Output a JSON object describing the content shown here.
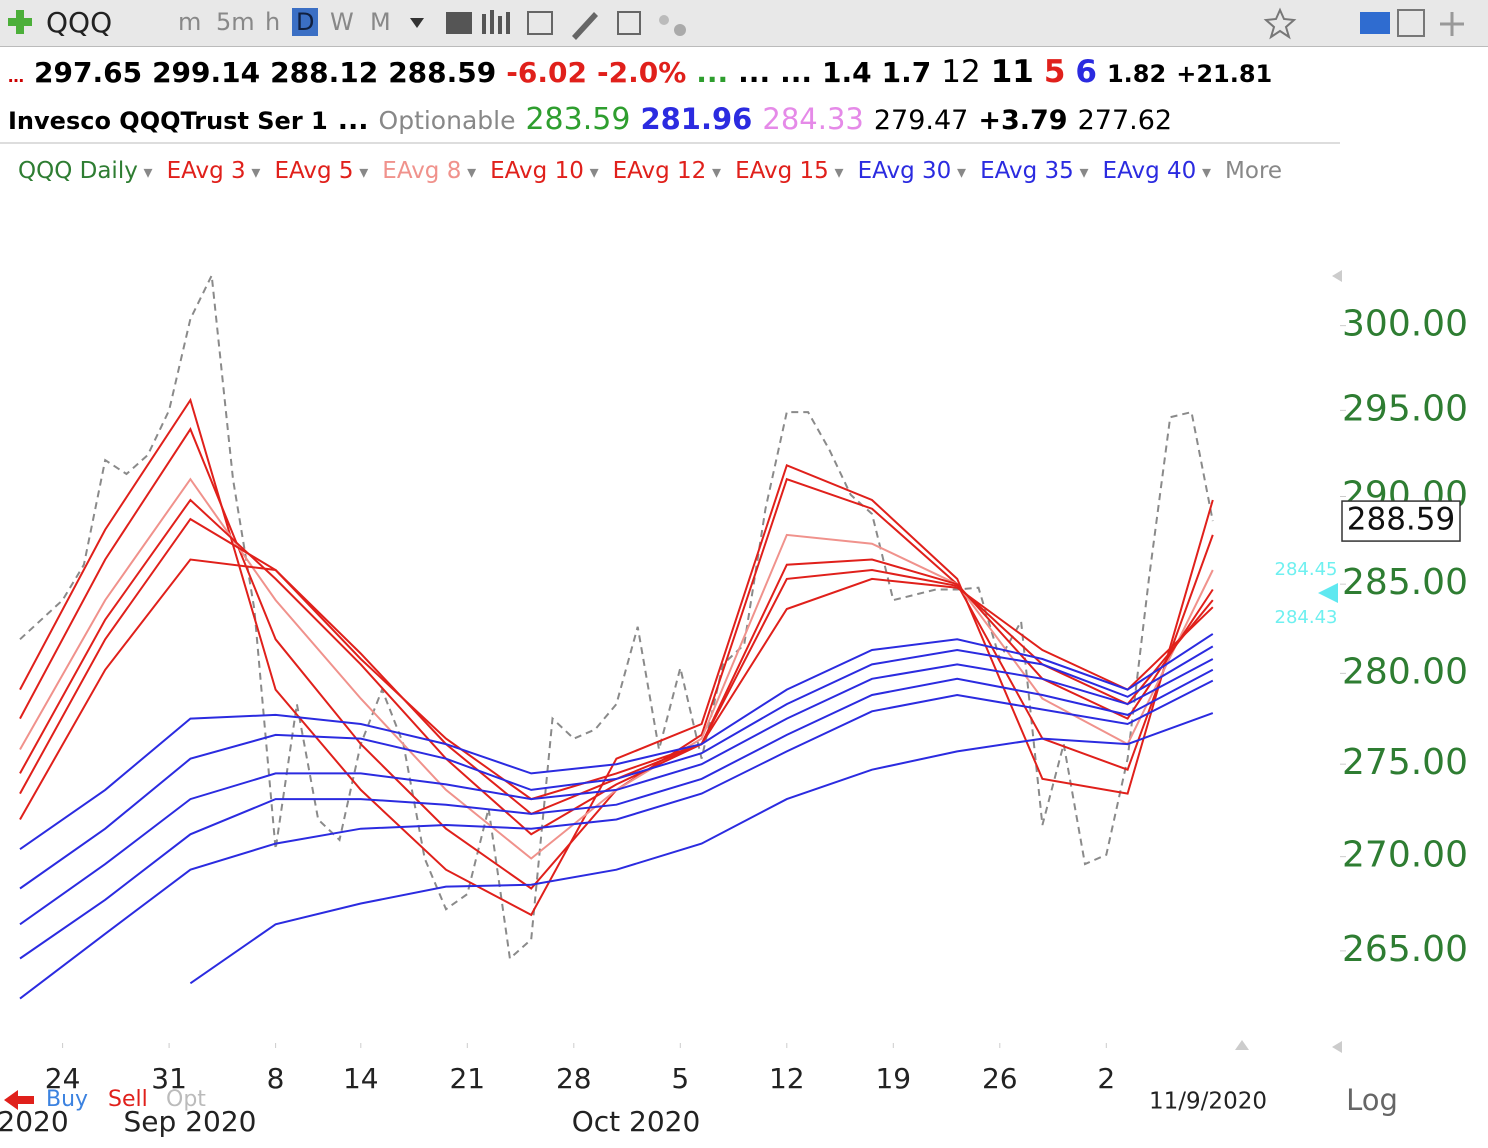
{
  "toolbar": {
    "symbol": "QQQ",
    "intervals": [
      "m",
      "5m",
      "h",
      "D",
      "W",
      "M"
    ]
  },
  "quote": {
    "values": [
      "297.65",
      "299.14",
      "288.12",
      "288.59",
      "-6.02",
      "-2.0%",
      "...",
      "...",
      "...",
      "1.4",
      "1.7",
      "12",
      "11",
      "5",
      "6",
      "1.82",
      "+21.81"
    ]
  },
  "info": {
    "name": "Invesco QQQTrust Ser 1",
    "dots": "...",
    "optionable": "Optionable",
    "values": [
      "283.59",
      "281.96",
      "284.33",
      "279.47",
      "+3.79",
      "277.62"
    ]
  },
  "legend_more": "More",
  "footer": {
    "buy": "Buy",
    "sell": "Sell",
    "opt": "Opt",
    "log": "Log"
  },
  "chart_data": {
    "type": "line",
    "log": true,
    "ylim": [
      260.2,
      308
    ],
    "yticks": [
      {
        "value": 265,
        "label": "265.00"
      },
      {
        "value": 270,
        "label": "270.00"
      },
      {
        "value": 275,
        "label": "275.00"
      },
      {
        "value": 280,
        "label": "280.00"
      },
      {
        "value": 285,
        "label": "285.00"
      },
      {
        "value": 290,
        "label": "290.00"
      },
      {
        "value": 295,
        "label": "295.00"
      },
      {
        "value": 300,
        "label": "300.00"
      }
    ],
    "x": [
      "2020-08-20",
      "2020-08-21",
      "2020-08-24",
      "2020-08-25",
      "2020-08-26",
      "2020-08-27",
      "2020-08-28",
      "2020-08-31",
      "2020-09-01",
      "2020-09-02",
      "2020-09-03",
      "2020-09-04",
      "2020-09-08",
      "2020-09-09",
      "2020-09-10",
      "2020-09-11",
      "2020-09-14",
      "2020-09-15",
      "2020-09-16",
      "2020-09-17",
      "2020-09-18",
      "2020-09-21",
      "2020-09-22",
      "2020-09-23",
      "2020-09-24",
      "2020-09-25",
      "2020-09-28",
      "2020-09-29",
      "2020-09-30",
      "2020-10-01",
      "2020-10-02",
      "2020-10-05",
      "2020-10-06",
      "2020-10-07",
      "2020-10-08",
      "2020-10-09",
      "2020-10-12",
      "2020-10-13",
      "2020-10-14",
      "2020-10-15",
      "2020-10-16",
      "2020-10-19",
      "2020-10-20",
      "2020-10-21",
      "2020-10-22",
      "2020-10-23",
      "2020-10-26",
      "2020-10-27",
      "2020-10-28",
      "2020-10-29",
      "2020-10-30",
      "2020-11-02",
      "2020-11-03",
      "2020-11-04",
      "2020-11-05",
      "2020-11-06",
      "2020-11-09"
    ],
    "xticks": [
      {
        "value": "2020-08-24",
        "label": "24"
      },
      {
        "value": "2020-08-31",
        "label": "31"
      },
      {
        "value": "2020-09-08",
        "label": "8"
      },
      {
        "value": "2020-09-14",
        "label": "14"
      },
      {
        "value": "2020-09-21",
        "label": "21"
      },
      {
        "value": "2020-09-28",
        "label": "28"
      },
      {
        "value": "2020-10-05",
        "label": "5"
      },
      {
        "value": "2020-10-12",
        "label": "12"
      },
      {
        "value": "2020-10-19",
        "label": "19"
      },
      {
        "value": "2020-10-26",
        "label": "26"
      },
      {
        "value": "2020-11-02",
        "label": "2"
      }
    ],
    "month_labels": [
      "2020",
      "Sep 2020",
      "Oct 2020"
    ],
    "date_label": "11/9/2020",
    "price_tag": "288.59",
    "right_labels": [
      "284.45",
      "284.43"
    ],
    "series": [
      {
        "name": "QQQ Daily",
        "color": "#8a8a8a",
        "dashed": true,
        "values": [
          281.9,
          283.0,
          284.1,
          286.1,
          292.1,
          291.3,
          292.4,
          295.0,
          300.4,
          303.0,
          291.0,
          283.6,
          270.4,
          278.3,
          272.0,
          270.9,
          276.1,
          279.1,
          276.1,
          269.9,
          267.2,
          268.0,
          272.6,
          264.6,
          265.6,
          277.5,
          276.4,
          276.9,
          278.3,
          282.6,
          275.8,
          280.3,
          275.3,
          280.5,
          281.6,
          289.3,
          294.9,
          294.9,
          292.7,
          290.1,
          289.0,
          284.1,
          284.4,
          284.7,
          284.7,
          284.8,
          280.8,
          282.9,
          271.7,
          276.1,
          269.6,
          270.1,
          275.3,
          285.3,
          294.6,
          294.9,
          288.59
        ]
      },
      {
        "name": "EAvg 3",
        "color": "#e0201b",
        "x": [
          "2020-08-20",
          "2020-08-26",
          "2020-09-01",
          "2020-09-08",
          "2020-09-14",
          "2020-09-18",
          "2020-09-24",
          "2020-09-30",
          "2020-10-06",
          "2020-10-12",
          "2020-10-16",
          "2020-10-22",
          "2020-10-28",
          "2020-11-03",
          "2020-11-09"
        ],
        "values": [
          279.1,
          288.1,
          295.6,
          279.1,
          273.6,
          269.3,
          266.9,
          275.3,
          277.2,
          291.8,
          289.8,
          285.3,
          274.2,
          273.4,
          289.8
        ]
      },
      {
        "name": "EAvg 5",
        "color": "#e0201b",
        "x": [
          "2020-08-20",
          "2020-08-26",
          "2020-09-01",
          "2020-09-08",
          "2020-09-14",
          "2020-09-18",
          "2020-09-24",
          "2020-09-30",
          "2020-10-06",
          "2020-10-12",
          "2020-10-16",
          "2020-10-22",
          "2020-10-28",
          "2020-11-03",
          "2020-11-09"
        ],
        "values": [
          277.5,
          286.4,
          293.9,
          281.9,
          276.1,
          271.5,
          268.3,
          273.6,
          276.6,
          291.0,
          289.3,
          285.0,
          276.4,
          274.7,
          287.8
        ]
      },
      {
        "name": "EAvg 8",
        "color": "#f0928c",
        "x": [
          "2020-08-20",
          "2020-08-26",
          "2020-09-01",
          "2020-09-08",
          "2020-09-14",
          "2020-09-18",
          "2020-09-24",
          "2020-09-30",
          "2020-10-06",
          "2020-10-12",
          "2020-10-16",
          "2020-10-22",
          "2020-10-28",
          "2020-11-03",
          "2020-11-09"
        ],
        "values": [
          275.8,
          284.1,
          291.0,
          284.1,
          278.6,
          273.6,
          269.9,
          273.6,
          276.4,
          287.8,
          287.3,
          285.0,
          278.6,
          276.1,
          285.8
        ]
      },
      {
        "name": "EAvg 10",
        "color": "#e0201b",
        "x": [
          "2020-08-20",
          "2020-08-26",
          "2020-09-01",
          "2020-09-08",
          "2020-09-14",
          "2020-09-18",
          "2020-09-24",
          "2020-09-30",
          "2020-10-06",
          "2020-10-12",
          "2020-10-16",
          "2020-10-22",
          "2020-10-28",
          "2020-11-03",
          "2020-11-09"
        ],
        "values": [
          274.5,
          283.0,
          289.8,
          285.3,
          280.5,
          275.3,
          271.2,
          273.9,
          276.1,
          286.1,
          286.4,
          285.0,
          279.7,
          277.5,
          284.7
        ]
      },
      {
        "name": "EAvg 12",
        "color": "#e0201b",
        "x": [
          "2020-08-20",
          "2020-08-26",
          "2020-09-01",
          "2020-09-08",
          "2020-09-14",
          "2020-09-18",
          "2020-09-24",
          "2020-09-30",
          "2020-10-06",
          "2020-10-12",
          "2020-10-16",
          "2020-10-22",
          "2020-10-28",
          "2020-11-03",
          "2020-11-09"
        ],
        "values": [
          273.4,
          281.9,
          288.7,
          285.8,
          281.1,
          276.1,
          272.3,
          274.2,
          276.1,
          285.3,
          285.8,
          284.9,
          280.5,
          278.3,
          284.1
        ]
      },
      {
        "name": "EAvg 15",
        "color": "#e0201b",
        "x": [
          "2020-08-20",
          "2020-08-26",
          "2020-09-01",
          "2020-09-08",
          "2020-09-14",
          "2020-09-18",
          "2020-09-24",
          "2020-09-30",
          "2020-10-06",
          "2020-10-12",
          "2020-10-16",
          "2020-10-22",
          "2020-10-28",
          "2020-11-03",
          "2020-11-09"
        ],
        "values": [
          272.0,
          280.2,
          286.4,
          285.8,
          280.8,
          276.4,
          273.1,
          274.5,
          276.1,
          283.6,
          285.3,
          284.8,
          281.3,
          279.1,
          283.7
        ]
      },
      {
        "name": "EAvg 30",
        "color": "#2b2be0",
        "x": [
          "2020-08-20",
          "2020-08-26",
          "2020-09-01",
          "2020-09-08",
          "2020-09-14",
          "2020-09-18",
          "2020-09-24",
          "2020-09-30",
          "2020-10-06",
          "2020-10-12",
          "2020-10-16",
          "2020-10-22",
          "2020-10-28",
          "2020-11-03",
          "2020-11-09"
        ],
        "values": [
          270.4,
          273.6,
          277.5,
          277.7,
          277.2,
          276.1,
          274.5,
          275.0,
          276.1,
          279.1,
          281.3,
          281.9,
          280.8,
          279.1,
          282.2
        ]
      },
      {
        "name": "EAvg 35",
        "color": "#2b2be0",
        "x": [
          "2020-08-20",
          "2020-08-26",
          "2020-09-01",
          "2020-09-08",
          "2020-09-14",
          "2020-09-18",
          "2020-09-24",
          "2020-09-30",
          "2020-10-06",
          "2020-10-12",
          "2020-10-16",
          "2020-10-22",
          "2020-10-28",
          "2020-11-03",
          "2020-11-09"
        ],
        "values": [
          268.3,
          271.5,
          275.3,
          276.6,
          276.4,
          275.3,
          273.6,
          274.2,
          275.6,
          278.3,
          280.5,
          281.3,
          280.5,
          278.7,
          281.5
        ]
      },
      {
        "name": "EAvg 40",
        "color": "#2b2be0",
        "x": [
          "2020-08-20",
          "2020-08-26",
          "2020-09-01",
          "2020-09-08",
          "2020-09-14",
          "2020-09-18",
          "2020-09-24",
          "2020-09-30",
          "2020-10-06",
          "2020-10-12",
          "2020-10-16",
          "2020-10-22",
          "2020-10-28",
          "2020-11-03",
          "2020-11-09"
        ],
        "values": [
          266.4,
          269.6,
          273.1,
          274.5,
          274.5,
          273.9,
          273.1,
          273.6,
          275.0,
          277.5,
          279.7,
          280.5,
          279.7,
          278.3,
          280.8
        ]
      },
      {
        "color": "#2b2be0",
        "x": [
          "2020-08-20",
          "2020-08-26",
          "2020-09-01",
          "2020-09-08",
          "2020-09-14",
          "2020-09-18",
          "2020-09-24",
          "2020-09-30",
          "2020-10-06",
          "2020-10-12",
          "2020-10-16",
          "2020-10-22",
          "2020-10-28",
          "2020-11-03",
          "2020-11-09"
        ],
        "values": [
          264.6,
          267.7,
          271.2,
          273.1,
          273.1,
          272.8,
          272.3,
          272.8,
          274.2,
          276.6,
          278.8,
          279.7,
          278.8,
          277.7,
          280.2
        ]
      },
      {
        "color": "#2b2be0",
        "x": [
          "2020-08-20",
          "2020-08-26",
          "2020-09-01",
          "2020-09-08",
          "2020-09-14",
          "2020-09-18",
          "2020-09-24",
          "2020-09-30",
          "2020-10-06",
          "2020-10-12",
          "2020-10-16",
          "2020-10-22",
          "2020-10-28",
          "2020-11-03",
          "2020-11-09"
        ],
        "values": [
          262.5,
          265.9,
          269.3,
          270.7,
          271.5,
          271.7,
          271.5,
          272.0,
          273.4,
          275.7,
          277.9,
          278.8,
          278.0,
          277.2,
          279.6
        ]
      },
      {
        "color": "#2b2be0",
        "x": [
          "2020-08-20",
          "2020-08-26",
          "2020-09-01",
          "2020-09-08",
          "2020-09-14",
          "2020-09-18",
          "2020-09-24",
          "2020-09-30",
          "2020-10-06",
          "2020-10-12",
          "2020-10-16",
          "2020-10-22",
          "2020-10-28",
          "2020-11-03",
          "2020-11-09"
        ],
        "values": [
          null,
          null,
          263.3,
          266.4,
          267.5,
          268.4,
          268.5,
          269.3,
          270.7,
          273.1,
          274.7,
          275.7,
          276.4,
          276.1,
          277.8
        ]
      }
    ]
  }
}
